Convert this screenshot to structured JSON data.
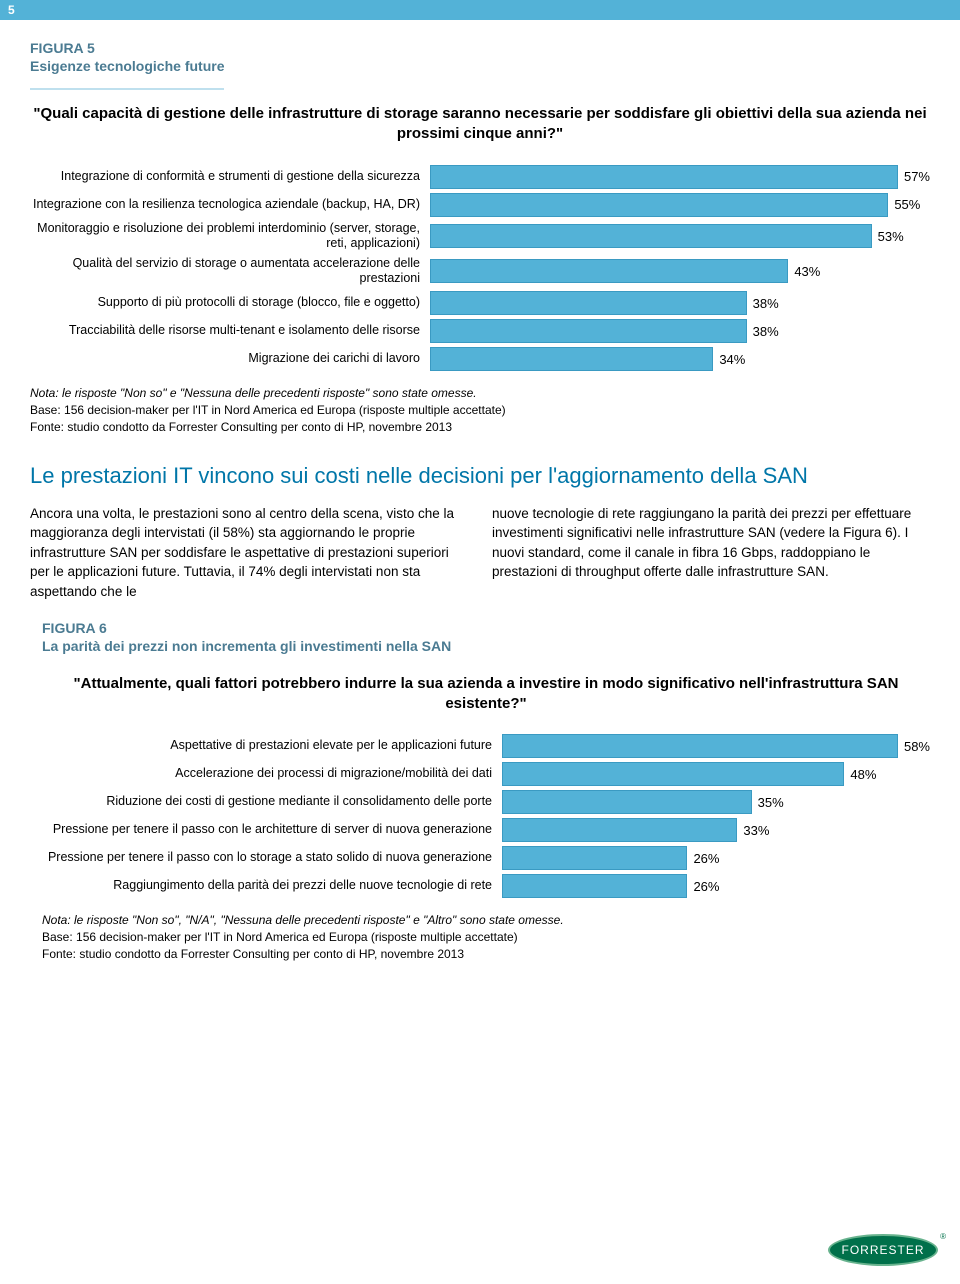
{
  "page_number": "5",
  "figure5": {
    "label": "FIGURA 5",
    "title": "Esigenze tecnologiche future",
    "question": "\"Quali capacità di gestione delle infrastrutture di storage saranno necessarie per soddisfare gli obiettivi della sua azienda nei prossimi cinque anni?\"",
    "chart": {
      "type": "bar",
      "bar_color": "#53b2d7",
      "bar_border": "#3a9ac2",
      "max_percent": 60,
      "items": [
        {
          "label": "Integrazione di conformità e strumenti di gestione della sicurezza",
          "value": 57,
          "display": "57%"
        },
        {
          "label": "Integrazione con la resilienza tecnologica aziendale (backup, HA, DR)",
          "value": 55,
          "display": "55%"
        },
        {
          "label": "Monitoraggio e risoluzione dei problemi interdominio (server, storage, reti, applicazioni)",
          "value": 53,
          "display": "53%"
        },
        {
          "label": "Qualità del servizio di storage o aumentata accelerazione delle prestazioni",
          "value": 43,
          "display": "43%"
        },
        {
          "label": "Supporto di più protocolli di storage (blocco, file e oggetto)",
          "value": 38,
          "display": "38%"
        },
        {
          "label": "Tracciabilità delle risorse multi-tenant e isolamento delle risorse",
          "value": 38,
          "display": "38%"
        },
        {
          "label": "Migrazione dei carichi di lavoro",
          "value": 34,
          "display": "34%"
        }
      ]
    },
    "note_line1": "Nota: le risposte \"Non so\" e \"Nessuna delle precedenti risposte\" sono state omesse.",
    "note_line2": "Base: 156 decision-maker per l'IT in Nord America ed Europa (risposte multiple accettate)",
    "note_line3": "Fonte: studio condotto da Forrester Consulting per conto di HP, novembre 2013"
  },
  "section_heading": "Le prestazioni IT vincono sui costi nelle decisioni per l'aggiornamento della SAN",
  "body": {
    "col1": "Ancora una volta, le prestazioni sono al centro della scena, visto che la maggioranza degli intervistati (il 58%) sta aggiornando le proprie infrastrutture SAN per soddisfare le aspettative di prestazioni superiori per le applicazioni future. Tuttavia, il 74% degli intervistati non sta aspettando che le",
    "col2": "nuove tecnologie di rete raggiungano la parità dei prezzi per effettuare investimenti significativi nelle infrastrutture SAN (vedere la Figura 6). I nuovi standard, come il canale in fibra 16 Gbps, raddoppiano le prestazioni di throughput offerte dalle infrastrutture SAN."
  },
  "figure6": {
    "label": "FIGURA 6",
    "title": "La parità dei prezzi non incrementa gli investimenti nella SAN",
    "question": "\"Attualmente, quali fattori potrebbero indurre la sua azienda a investire in modo significativo nell'infrastruttura SAN esistente?\"",
    "chart": {
      "type": "bar",
      "bar_color": "#53b2d7",
      "bar_border": "#3a9ac2",
      "max_percent": 60,
      "items": [
        {
          "label": "Aspettative di prestazioni elevate per le applicazioni future",
          "value": 58,
          "display": "58%"
        },
        {
          "label": "Accelerazione dei processi di migrazione/mobilità dei dati",
          "value": 48,
          "display": "48%"
        },
        {
          "label": "Riduzione dei costi di gestione mediante il consolidamento delle porte",
          "value": 35,
          "display": "35%"
        },
        {
          "label": "Pressione per tenere il passo con le architetture di server di nuova generazione",
          "value": 33,
          "display": "33%"
        },
        {
          "label": "Pressione per tenere il passo con lo storage a stato solido di nuova generazione",
          "value": 26,
          "display": "26%"
        },
        {
          "label": "Raggiungimento della parità dei prezzi delle nuove tecnologie di rete",
          "value": 26,
          "display": "26%"
        }
      ]
    },
    "note_line1": "Nota: le risposte \"Non so\", \"N/A\", \"Nessuna delle precedenti risposte\" e \"Altro\" sono state omesse.",
    "note_line2": "Base: 156 decision-maker per l'IT in Nord America ed Europa (risposte multiple accettate)",
    "note_line3": "Fonte: studio condotto da Forrester Consulting per conto di HP, novembre 2013"
  },
  "logo_text": "FORRESTER"
}
